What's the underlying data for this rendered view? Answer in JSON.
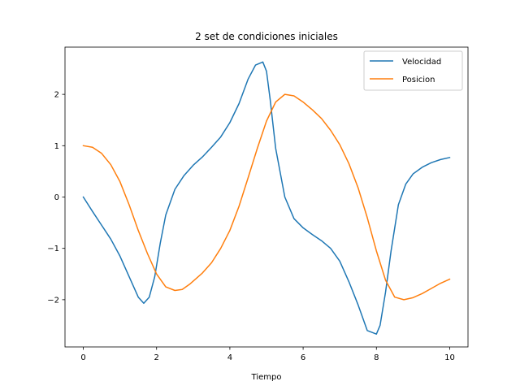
{
  "chart_data": {
    "type": "line",
    "title": "2 set de condiciones iniciales",
    "xlabel": "Tiempo",
    "ylabel": "",
    "xlim": [
      -0.5,
      10.5
    ],
    "ylim": [
      -2.92,
      2.92
    ],
    "xticks": [
      0,
      2,
      4,
      6,
      8,
      10
    ],
    "yticks": [
      -2,
      -1,
      0,
      1,
      2
    ],
    "xtick_labels": [
      "0",
      "2",
      "4",
      "6",
      "8",
      "10"
    ],
    "ytick_labels": [
      "−2",
      "−1",
      "0",
      "1",
      "2"
    ],
    "grid": false,
    "legend_position": "top-right",
    "series": [
      {
        "name": "Velocidad",
        "color": "#1f77b4",
        "x": [
          0,
          0.25,
          0.5,
          0.75,
          1.0,
          1.25,
          1.5,
          1.65,
          1.8,
          1.95,
          2.1,
          2.25,
          2.5,
          2.75,
          3.0,
          3.25,
          3.5,
          3.75,
          4.0,
          4.25,
          4.5,
          4.7,
          4.9,
          5.0,
          5.1,
          5.25,
          5.5,
          5.75,
          6.0,
          6.25,
          6.5,
          6.75,
          7.0,
          7.25,
          7.5,
          7.75,
          8.0,
          8.1,
          8.25,
          8.4,
          8.6,
          8.8,
          9.0,
          9.25,
          9.5,
          9.75,
          10.0
        ],
        "y": [
          0.0,
          -0.28,
          -0.55,
          -0.82,
          -1.15,
          -1.55,
          -1.95,
          -2.07,
          -1.95,
          -1.55,
          -0.9,
          -0.35,
          0.15,
          0.42,
          0.62,
          0.78,
          0.97,
          1.17,
          1.45,
          1.82,
          2.3,
          2.57,
          2.63,
          2.45,
          1.9,
          0.95,
          0.0,
          -0.42,
          -0.6,
          -0.73,
          -0.85,
          -1.0,
          -1.25,
          -1.65,
          -2.1,
          -2.6,
          -2.67,
          -2.5,
          -1.85,
          -1.05,
          -0.15,
          0.25,
          0.45,
          0.58,
          0.67,
          0.73,
          0.77
        ]
      },
      {
        "name": "Posicion",
        "color": "#ff7f0e",
        "x": [
          0,
          0.25,
          0.5,
          0.75,
          1.0,
          1.25,
          1.5,
          1.75,
          2.0,
          2.25,
          2.5,
          2.7,
          2.9,
          3.25,
          3.5,
          3.75,
          4.0,
          4.25,
          4.5,
          4.75,
          5.0,
          5.25,
          5.5,
          5.75,
          6.0,
          6.25,
          6.5,
          6.75,
          7.0,
          7.25,
          7.5,
          7.75,
          8.0,
          8.25,
          8.5,
          8.75,
          9.0,
          9.25,
          9.5,
          9.75,
          10.0
        ],
        "y": [
          1.0,
          0.97,
          0.85,
          0.63,
          0.3,
          -0.15,
          -0.65,
          -1.1,
          -1.5,
          -1.75,
          -1.82,
          -1.8,
          -1.7,
          -1.48,
          -1.28,
          -1.0,
          -0.65,
          -0.18,
          0.38,
          0.95,
          1.48,
          1.85,
          2.0,
          1.97,
          1.85,
          1.7,
          1.53,
          1.3,
          1.02,
          0.65,
          0.18,
          -0.4,
          -1.05,
          -1.62,
          -1.95,
          -2.0,
          -1.96,
          -1.88,
          -1.78,
          -1.68,
          -1.6
        ]
      }
    ]
  }
}
